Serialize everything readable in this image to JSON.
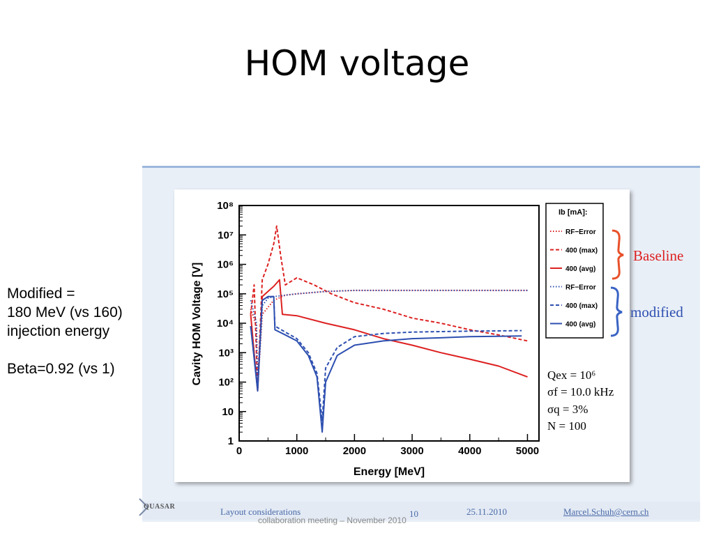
{
  "slide": {
    "title": "HOM voltage",
    "notes": [
      "Modified =",
      "180 MeV (vs 160)",
      "injection energy",
      "Beta=0.92 (vs 1)"
    ]
  },
  "footer": {
    "logo": "QUASAR",
    "left": "Layout considerations",
    "page": "10",
    "date": "25.11.2010",
    "email": "Marcel.Schuh@cern.ch",
    "subtitle": "collaboration meeting – November 2010"
  },
  "chart_data": {
    "type": "line",
    "xlabel": "Energy [MeV]",
    "ylabel": "Cavity HOM Voltage [V]",
    "xlim": [
      0,
      5200
    ],
    "ylim": [
      1,
      100000000
    ],
    "y_scale": "log",
    "x_ticks": [
      "0",
      "1000",
      "2000",
      "3000",
      "4000",
      "5000"
    ],
    "y_ticks": [
      "1",
      "10",
      "10²",
      "10³",
      "10⁴",
      "10⁵",
      "10⁶",
      "10⁷",
      "10⁸"
    ],
    "legend": {
      "title": "Ib [mA]:",
      "placement": "top-right",
      "entries": [
        "RF−Error",
        "400 (max)",
        "400 (avg)",
        "RF−Error",
        "400 (max)",
        "400 (avg)"
      ]
    },
    "group_labels": {
      "baseline": "Baseline",
      "modified": "modified"
    },
    "params": [
      "Qex = 10⁶",
      "σf = 10.0 kHz",
      "σq = 3%",
      "N = 100"
    ],
    "colors": {
      "baseline": "#dd2020",
      "modified": "#2d4fb0",
      "baseline_brace": "#e8502a",
      "modified_brace": "#3a63c4"
    },
    "series": [
      {
        "group": "baseline",
        "style": "dotted",
        "x": [
          200,
          300,
          320,
          400,
          600,
          800,
          1000,
          1500,
          2000,
          3000,
          4000,
          5000
        ],
        "y": [
          30000,
          8000,
          60,
          20000,
          60000,
          90000,
          100000,
          120000,
          130000,
          130000,
          130000,
          130000
        ]
      },
      {
        "group": "baseline",
        "style": "dashed",
        "x": [
          200,
          260,
          320,
          400,
          500,
          600,
          650,
          720,
          800,
          1000,
          1300,
          1600,
          2000,
          2500,
          3000,
          3500,
          4000,
          4500,
          5000
        ],
        "y": [
          20000,
          200000,
          60,
          300000,
          1000000,
          5000000,
          20000000,
          2000000,
          200000,
          350000,
          200000,
          100000,
          50000,
          30000,
          15000,
          10000,
          6000,
          4000,
          2500
        ]
      },
      {
        "group": "baseline",
        "style": "solid",
        "x": [
          200,
          320,
          400,
          500,
          600,
          700,
          750,
          1000,
          1500,
          2000,
          2500,
          3000,
          3500,
          4000,
          4500,
          5000
        ],
        "y": [
          20000,
          50,
          80000,
          120000,
          180000,
          300000,
          20000,
          18000,
          10000,
          6000,
          3000,
          1800,
          1000,
          600,
          350,
          150
        ]
      },
      {
        "group": "modified",
        "style": "dotted",
        "x": [
          200,
          300,
          320,
          400,
          500,
          600,
          800,
          1000,
          1500,
          2000,
          3000,
          4000,
          5000
        ],
        "y": [
          60000,
          10000,
          60,
          40000,
          70000,
          80000,
          90000,
          100000,
          120000,
          130000,
          130000,
          130000,
          130000
        ]
      },
      {
        "group": "modified",
        "style": "dashed",
        "x": [
          200,
          320,
          400,
          500,
          600,
          620,
          800,
          1000,
          1200,
          1350,
          1440,
          1500,
          1700,
          2000,
          2500,
          3000,
          3500,
          4000,
          4500,
          4900
        ],
        "y": [
          8000,
          60,
          60000,
          80000,
          80000,
          8000,
          5000,
          3000,
          1000,
          200,
          5,
          300,
          1500,
          3500,
          4500,
          5000,
          5200,
          5400,
          5500,
          5600
        ]
      },
      {
        "group": "modified",
        "style": "solid",
        "x": [
          200,
          320,
          400,
          500,
          600,
          620,
          800,
          1000,
          1200,
          1350,
          1440,
          1500,
          1700,
          2000,
          2500,
          3000,
          3500,
          4000,
          4500,
          4900
        ],
        "y": [
          8000,
          50,
          60000,
          80000,
          80000,
          6000,
          4000,
          2500,
          800,
          150,
          2,
          100,
          800,
          1800,
          2500,
          3000,
          3200,
          3500,
          3600,
          3700
        ]
      }
    ]
  }
}
